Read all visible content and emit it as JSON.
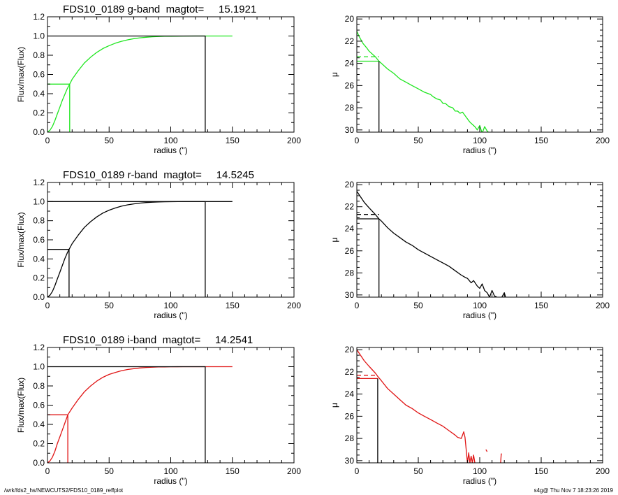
{
  "colors": {
    "g": "#1ee61e",
    "r": "#000000",
    "i": "#e01414",
    "axis": "#000000"
  },
  "footer": {
    "path": "/wrk/fds2_hs/NEWCUTS2/FDS10_0189_reffplot",
    "stamp": "s4g@  Thu Nov  7 18:23:26 2019"
  },
  "chart_data": [
    {
      "type": "line",
      "band": "g",
      "title": "FDS10_0189 g-band  magtot=     15.1921",
      "xlabel": "radius (\")",
      "ylabel": "Flux/max(Flux)",
      "xlim": [
        0,
        200
      ],
      "ylim": [
        0,
        1.2
      ],
      "xticks": [
        "0",
        "50",
        "100",
        "150",
        "200"
      ],
      "yticks": [
        "0.0",
        "0.2",
        "0.4",
        "0.6",
        "0.8",
        "1.0",
        "1.2"
      ],
      "r_half": 18,
      "r_total": 128,
      "series": [
        {
          "color": "#1ee61e",
          "x": [
            0,
            2,
            4,
            6,
            8,
            10,
            12,
            14,
            16,
            18,
            20,
            25,
            30,
            35,
            40,
            45,
            50,
            55,
            60,
            65,
            70,
            75,
            80,
            85,
            90,
            95,
            100,
            110,
            120,
            128,
            135,
            150
          ],
          "y": [
            0,
            0.02,
            0.06,
            0.12,
            0.19,
            0.26,
            0.33,
            0.39,
            0.45,
            0.5,
            0.55,
            0.64,
            0.72,
            0.78,
            0.83,
            0.87,
            0.9,
            0.925,
            0.945,
            0.96,
            0.972,
            0.981,
            0.987,
            0.992,
            0.995,
            0.997,
            0.998,
            0.999,
            1.0,
            1.0,
            1.0,
            1.0
          ]
        },
        {
          "color": "#1ee61e",
          "x": [
            0,
            18,
            18
          ],
          "y": [
            0.5,
            0.5,
            0
          ]
        },
        {
          "color": "#000000",
          "x": [
            0,
            128,
            128
          ],
          "y": [
            1.0,
            1.0,
            0
          ]
        }
      ]
    },
    {
      "type": "line",
      "band": "g",
      "title": "",
      "xlabel": "radius (\")",
      "ylabel": "μ",
      "xlim": [
        0,
        200
      ],
      "ylim": [
        30.2,
        19.8
      ],
      "y_reversed": true,
      "xticks": [
        "0",
        "50",
        "100",
        "150",
        "200"
      ],
      "yticks": [
        "20",
        "22",
        "24",
        "26",
        "28",
        "30"
      ],
      "series": [
        {
          "color": "#1ee61e",
          "x": [
            0,
            2,
            5,
            8,
            10,
            15,
            18,
            20,
            25,
            30,
            35,
            40,
            45,
            50,
            55,
            60,
            62,
            65,
            68,
            70,
            72,
            75,
            78,
            80,
            82,
            84,
            86,
            88,
            90,
            92,
            94,
            96,
            98,
            100,
            102,
            104,
            106,
            108
          ],
          "y": [
            21.1,
            21.6,
            22.2,
            22.6,
            22.9,
            23.4,
            23.8,
            24.0,
            24.5,
            24.9,
            25.4,
            25.7,
            26.0,
            26.3,
            26.6,
            26.8,
            27.0,
            27.2,
            27.3,
            27.6,
            27.6,
            27.9,
            28.0,
            28.3,
            28.3,
            28.5,
            28.4,
            28.7,
            29.0,
            29.3,
            29.5,
            29.7,
            30.0,
            29.6,
            30.3,
            29.7,
            30.1,
            30.3
          ]
        },
        {
          "color": "#1ee61e",
          "x": [
            0,
            18
          ],
          "y": [
            23.4,
            23.4
          ],
          "dash": true
        },
        {
          "color": "#1ee61e",
          "x": [
            0,
            18
          ],
          "y": [
            23.8,
            23.8
          ]
        },
        {
          "color": "#000000",
          "x": [
            18,
            18
          ],
          "y": [
            23.8,
            30.2
          ]
        }
      ]
    },
    {
      "type": "line",
      "band": "r",
      "title": "FDS10_0189 r-band  magtot=     14.5245",
      "xlabel": "radius (\")",
      "ylabel": "Flux/max(Flux)",
      "xlim": [
        0,
        200
      ],
      "ylim": [
        0,
        1.2
      ],
      "xticks": [
        "0",
        "50",
        "100",
        "150",
        "200"
      ],
      "yticks": [
        "0.0",
        "0.2",
        "0.4",
        "0.6",
        "0.8",
        "1.0",
        "1.2"
      ],
      "r_half": 17.5,
      "r_total": 128,
      "series": [
        {
          "color": "#000000",
          "x": [
            0,
            2,
            4,
            6,
            8,
            10,
            12,
            14,
            16,
            17.5,
            20,
            25,
            30,
            35,
            40,
            45,
            50,
            55,
            60,
            65,
            70,
            75,
            80,
            85,
            90,
            95,
            100,
            110,
            120,
            128,
            135,
            150
          ],
          "y": [
            0,
            0.02,
            0.06,
            0.12,
            0.19,
            0.26,
            0.33,
            0.4,
            0.46,
            0.5,
            0.56,
            0.65,
            0.73,
            0.79,
            0.84,
            0.88,
            0.91,
            0.933,
            0.952,
            0.966,
            0.976,
            0.984,
            0.99,
            0.994,
            0.996,
            0.998,
            0.999,
            1.0,
            1.0,
            1.0,
            1.0,
            1.0
          ]
        },
        {
          "color": "#000000",
          "x": [
            0,
            17.5,
            17.5
          ],
          "y": [
            0.5,
            0.5,
            0
          ]
        },
        {
          "color": "#000000",
          "x": [
            0,
            128,
            128
          ],
          "y": [
            1.0,
            1.0,
            0
          ]
        }
      ]
    },
    {
      "type": "line",
      "band": "r",
      "title": "",
      "xlabel": "radius (\")",
      "ylabel": "μ",
      "xlim": [
        0,
        200
      ],
      "ylim": [
        30.2,
        19.8
      ],
      "y_reversed": true,
      "xticks": [
        "0",
        "50",
        "100",
        "150",
        "200"
      ],
      "yticks": [
        "20",
        "22",
        "24",
        "26",
        "28",
        "30"
      ],
      "series": [
        {
          "color": "#000000",
          "x": [
            0,
            3,
            6,
            10,
            15,
            18,
            20,
            25,
            30,
            35,
            40,
            45,
            50,
            55,
            60,
            65,
            70,
            75,
            80,
            85,
            88,
            90,
            93,
            95,
            98,
            100,
            102,
            104,
            106,
            108,
            110,
            112,
            114
          ],
          "y": [
            20.6,
            21.1,
            21.6,
            22.1,
            22.7,
            23.1,
            23.3,
            23.9,
            24.4,
            24.8,
            25.2,
            25.5,
            25.9,
            26.2,
            26.5,
            26.8,
            27.1,
            27.4,
            27.8,
            28.2,
            28.4,
            28.5,
            28.9,
            28.7,
            29.2,
            29.4,
            29.0,
            29.6,
            29.8,
            30.2,
            29.6,
            30.1,
            30.2
          ]
        },
        {
          "color": "#000000",
          "x": [
            118,
            120,
            121
          ],
          "y": [
            30.2,
            29.8,
            30.2
          ]
        },
        {
          "color": "#000000",
          "x": [
            0,
            18
          ],
          "y": [
            22.7,
            22.7
          ],
          "dash": true
        },
        {
          "color": "#000000",
          "x": [
            0,
            18
          ],
          "y": [
            23.1,
            23.1
          ]
        },
        {
          "color": "#000000",
          "x": [
            18,
            18
          ],
          "y": [
            23.1,
            30.2
          ]
        }
      ]
    },
    {
      "type": "line",
      "band": "i",
      "title": "FDS10_0189 i-band  magtot=     14.2541",
      "xlabel": "radius (\")",
      "ylabel": "Flux/max(Flux)",
      "xlim": [
        0,
        200
      ],
      "ylim": [
        0,
        1.2
      ],
      "xticks": [
        "0",
        "50",
        "100",
        "150",
        "200"
      ],
      "yticks": [
        "0.0",
        "0.2",
        "0.4",
        "0.6",
        "0.8",
        "1.0",
        "1.2"
      ],
      "r_half": 16.5,
      "r_total": 128,
      "series": [
        {
          "color": "#e01414",
          "x": [
            0,
            2,
            4,
            6,
            8,
            10,
            12,
            14,
            16.5,
            20,
            25,
            30,
            35,
            40,
            45,
            50,
            55,
            60,
            65,
            70,
            75,
            80,
            85,
            90,
            95,
            100,
            110,
            120,
            128,
            135,
            150
          ],
          "y": [
            0,
            0.02,
            0.06,
            0.12,
            0.2,
            0.27,
            0.34,
            0.41,
            0.5,
            0.57,
            0.66,
            0.74,
            0.8,
            0.85,
            0.89,
            0.92,
            0.94,
            0.958,
            0.971,
            0.98,
            0.987,
            0.992,
            0.995,
            0.997,
            0.998,
            0.999,
            1.0,
            1.0,
            1.0,
            1.0,
            1.0
          ]
        },
        {
          "color": "#e01414",
          "x": [
            0,
            16.5,
            16.5
          ],
          "y": [
            0.5,
            0.5,
            0
          ]
        },
        {
          "color": "#000000",
          "x": [
            0,
            128,
            128
          ],
          "y": [
            1.0,
            1.0,
            0
          ]
        }
      ]
    },
    {
      "type": "line",
      "band": "i",
      "title": "",
      "xlabel": "radius (\")",
      "ylabel": "μ",
      "xlim": [
        0,
        200
      ],
      "ylim": [
        30.2,
        19.8
      ],
      "y_reversed": true,
      "xticks": [
        "0",
        "50",
        "100",
        "150",
        "200"
      ],
      "yticks": [
        "20",
        "22",
        "24",
        "26",
        "28",
        "30"
      ],
      "series": [
        {
          "color": "#e01414",
          "x": [
            0,
            3,
            6,
            10,
            15,
            17,
            20,
            25,
            30,
            35,
            40,
            45,
            50,
            55,
            60,
            65,
            70,
            75,
            80,
            82,
            85,
            87,
            88,
            89,
            90,
            91,
            92,
            93,
            94,
            95,
            96
          ],
          "y": [
            20.0,
            20.5,
            21.0,
            21.5,
            22.1,
            22.4,
            22.8,
            23.5,
            24.0,
            24.5,
            25.0,
            25.3,
            25.7,
            26.0,
            26.3,
            26.6,
            26.9,
            27.3,
            27.7,
            27.9,
            28.0,
            27.4,
            27.9,
            29.0,
            30.2,
            29.3,
            30.2,
            29.6,
            30.2,
            29.5,
            30.2
          ]
        },
        {
          "color": "#e01414",
          "x": [
            105,
            106
          ],
          "y": [
            29.0,
            29.2
          ]
        },
        {
          "color": "#e01414",
          "x": [
            117,
            117.5,
            118
          ],
          "y": [
            30.2,
            29.4,
            29.4
          ]
        },
        {
          "color": "#e01414",
          "x": [
            0,
            17
          ],
          "y": [
            22.3,
            22.3
          ],
          "dash": true
        },
        {
          "color": "#e01414",
          "x": [
            0,
            17
          ],
          "y": [
            22.6,
            22.6
          ]
        },
        {
          "color": "#000000",
          "x": [
            17,
            17
          ],
          "y": [
            22.6,
            30.2
          ]
        }
      ]
    }
  ]
}
